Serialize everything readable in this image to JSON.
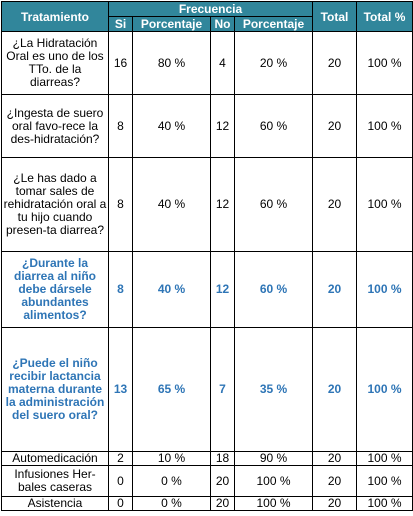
{
  "header": {
    "tratamiento": "Tratamiento",
    "frecuencia": "Frecuencia",
    "total": "Total",
    "total_pct": "Total %",
    "si": "Si",
    "porcentaje_si": "Porcentaje",
    "no": "No",
    "porcentaje_no": "Porcentaje"
  },
  "rows": [
    {
      "tratamiento": "¿La Hidratación Oral es uno de los TTo. de la diarreas?",
      "si": "16",
      "pct_si": "80 %",
      "no": "4",
      "pct_no": "20 %",
      "total": "20",
      "total_pct": "100 %"
    },
    {
      "tratamiento": "¿Ingesta de suero oral favo-rece la des-hidratación?",
      "si": "8",
      "pct_si": "40 %",
      "no": "12",
      "pct_no": "60 %",
      "total": "20",
      "total_pct": "100 %"
    },
    {
      "tratamiento": "¿Le has dado a tomar sales de rehidratación oral a tu hijo cuando presen-ta diarrea?",
      "si": "8",
      "pct_si": "40 %",
      "no": "12",
      "pct_no": "60 %",
      "total": "20",
      "total_pct": "100 %"
    },
    {
      "tratamiento": "¿Durante la diarrea al niño debe dársele abundantes alimentos?",
      "si": "8",
      "pct_si": "40 %",
      "no": "12",
      "pct_no": "60 %",
      "total": "20",
      "total_pct": "100 %"
    },
    {
      "tratamiento": "¿Puede el niño recibir lactancia materna durante la administración del suero oral?",
      "si": "13",
      "pct_si": "65 %",
      "no": "7",
      "pct_no": "35 %",
      "total": "20",
      "total_pct": "100 %"
    },
    {
      "tratamiento": "Automedicación",
      "si": "2",
      "pct_si": "10 %",
      "no": "18",
      "pct_no": "90 %",
      "total": "20",
      "total_pct": "100 %"
    },
    {
      "tratamiento": "Infusiones Her-bales caseras",
      "si": "0",
      "pct_si": "0 %",
      "no": "20",
      "pct_no": "100 %",
      "total": "20",
      "total_pct": "100 %"
    },
    {
      "tratamiento": "Asistencia",
      "si": "0",
      "pct_si": "0 %",
      "no": "20",
      "pct_no": "100 %",
      "total": "20",
      "total_pct": "100 %"
    }
  ],
  "colors": {
    "header_bg": "#31869b",
    "header_text": "#ffffff",
    "highlight_text": "#2e75b6"
  }
}
